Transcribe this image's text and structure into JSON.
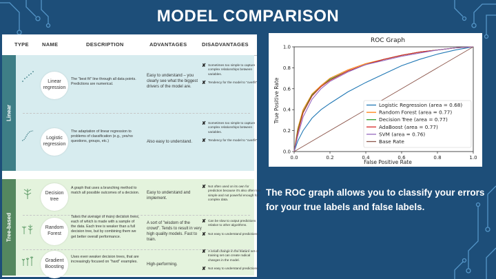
{
  "slide": {
    "title": "MODEL COMPARISON",
    "caption": "The ROC graph allows you to classify your errors for your true labels and false labels."
  },
  "table": {
    "headers": [
      "TYPE",
      "NAME",
      "DESCRIPTION",
      "ADVANTAGES",
      "DISADVANTAGES"
    ],
    "groups": {
      "linear": "Linear",
      "tree": "Tree-based"
    },
    "rows": [
      {
        "name": "Linear regression",
        "description": "The \"best fit\" line through all data points. Predictions are numerical.",
        "advantages": "Easy to understand – you clearly see what the biggest drivers of the model are.",
        "disadvantages": [
          "Sometimes too simple to capture complex relationships between variables.",
          "Tendency for the model to \"overfit\"."
        ]
      },
      {
        "name": "Logistic regression",
        "description": "The adaptation of linear regression to problems of classification (e.g., yes/no questions, groups, etc.)",
        "advantages": "Also easy to understand.",
        "disadvantages": [
          "Sometimes too simple to capture complex relationships between variables.",
          "Tendency for the model to \"overfit\"."
        ]
      },
      {
        "name": "Decision tree",
        "description": "A graph that uses a branching method to match all possible outcomes of a decision.",
        "advantages": "Easy to understand and implement.",
        "disadvantages": [
          "Not often used on its own for prediction because it's also often too simple and not powerful enough for complex data."
        ]
      },
      {
        "name": "Random Forest",
        "description": "Takes the average of many decision trees, each of which is made with a sample of the data. Each tree is weaker than a full decision tree, but by combining them we get better overall performance.",
        "advantages": "A sort of \"wisdom of the crowd\". Tends to result in very high quality models. Fast to train.",
        "disadvantages": [
          "Can be slow to output predictions relative to other algorithms.",
          "Not easy to understand predictions."
        ]
      },
      {
        "name": "Gradient Boosting",
        "description": "Uses even weaker decision trees, that are increasingly focused on \"hard\" examples.",
        "advantages": "High-performing.",
        "disadvantages": [
          "A small change in the feature set or training set can create radical changes in the model.",
          "Not easy to understand predictions."
        ]
      }
    ]
  },
  "chart_data": {
    "type": "line",
    "title": "ROC Graph",
    "xlabel": "False Positive Rate",
    "ylabel": "True Positive Rate",
    "xlim": [
      0.0,
      1.0
    ],
    "ylim": [
      0.0,
      1.0
    ],
    "ticks": [
      "0.0",
      "0.2",
      "0.4",
      "0.6",
      "0.8",
      "1.0"
    ],
    "legend_position": "lower-right",
    "series": [
      {
        "name": "Logistic Regression (area = 0.68)",
        "color": "#1f77b4",
        "x": [
          0,
          0.02,
          0.05,
          0.1,
          0.15,
          0.2,
          0.3,
          0.4,
          0.5,
          0.6,
          0.7,
          0.8,
          0.9,
          1.0
        ],
        "y": [
          0,
          0.1,
          0.2,
          0.32,
          0.4,
          0.46,
          0.57,
          0.66,
          0.74,
          0.82,
          0.88,
          0.93,
          0.97,
          1.0
        ]
      },
      {
        "name": "Random Forest (area = 0.77)",
        "color": "#ff7f0e",
        "x": [
          0,
          0.02,
          0.05,
          0.1,
          0.15,
          0.2,
          0.3,
          0.4,
          0.5,
          0.6,
          0.7,
          0.8,
          0.9,
          1.0
        ],
        "y": [
          0,
          0.22,
          0.4,
          0.55,
          0.63,
          0.7,
          0.78,
          0.84,
          0.88,
          0.92,
          0.95,
          0.97,
          0.99,
          1.0
        ]
      },
      {
        "name": "Decision Tree (area = 0.77)",
        "color": "#2ca02c",
        "x": [
          0,
          0.02,
          0.05,
          0.1,
          0.15,
          0.2,
          0.3,
          0.4,
          0.5,
          0.6,
          0.7,
          0.8,
          0.9,
          1.0
        ],
        "y": [
          0,
          0.2,
          0.38,
          0.54,
          0.62,
          0.69,
          0.77,
          0.83,
          0.88,
          0.92,
          0.95,
          0.97,
          0.99,
          1.0
        ]
      },
      {
        "name": "AdaBoost (area = 0.77)",
        "color": "#d62728",
        "x": [
          0,
          0.02,
          0.05,
          0.1,
          0.15,
          0.2,
          0.3,
          0.4,
          0.5,
          0.6,
          0.7,
          0.8,
          0.9,
          1.0
        ],
        "y": [
          0,
          0.18,
          0.37,
          0.53,
          0.62,
          0.68,
          0.77,
          0.83,
          0.88,
          0.92,
          0.95,
          0.97,
          0.99,
          1.0
        ]
      },
      {
        "name": "SVM (area = 0.76)",
        "color": "#9467bd",
        "x": [
          0,
          0.02,
          0.05,
          0.1,
          0.15,
          0.2,
          0.3,
          0.4,
          0.5,
          0.6,
          0.7,
          0.8,
          0.9,
          1.0
        ],
        "y": [
          0,
          0.15,
          0.33,
          0.5,
          0.6,
          0.67,
          0.76,
          0.83,
          0.87,
          0.91,
          0.94,
          0.97,
          0.99,
          1.0
        ]
      },
      {
        "name": "Base Rate",
        "color": "#8c564b",
        "x": [
          0,
          1.0
        ],
        "y": [
          0,
          1.0
        ]
      }
    ]
  }
}
